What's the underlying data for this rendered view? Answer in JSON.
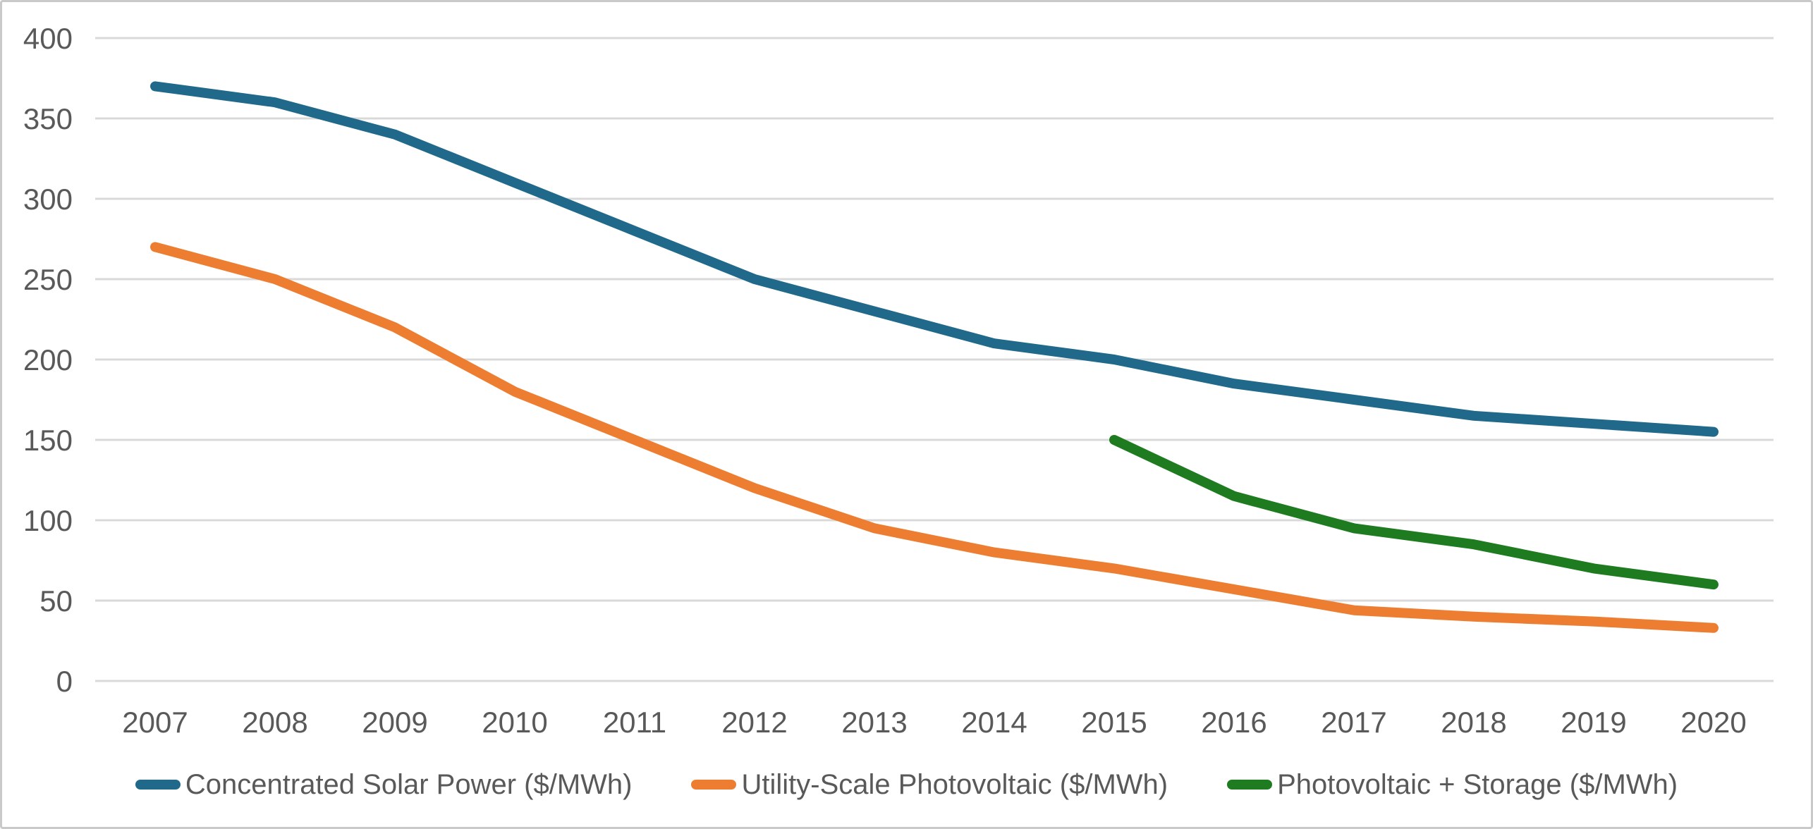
{
  "chart_data": {
    "type": "line",
    "title": "",
    "xlabel": "",
    "ylabel": "",
    "categories": [
      "2007",
      "2008",
      "2009",
      "2010",
      "2011",
      "2012",
      "2013",
      "2014",
      "2015",
      "2016",
      "2017",
      "2018",
      "2019",
      "2020"
    ],
    "series": [
      {
        "name": "Concentrated Solar Power ($/MWh)",
        "color": "#20698A",
        "values": [
          370,
          360,
          340,
          310,
          280,
          250,
          230,
          210,
          200,
          185,
          175,
          165,
          160,
          155
        ]
      },
      {
        "name": "Utility-Scale Photovoltaic ($/MWh)",
        "color": "#ED7D31",
        "values": [
          270,
          250,
          220,
          180,
          150,
          120,
          95,
          80,
          70,
          57,
          44,
          40,
          37,
          33
        ]
      },
      {
        "name": "Photovoltaic + Storage ($/MWh)",
        "color": "#1E7B1F",
        "values": [
          null,
          null,
          null,
          null,
          null,
          null,
          null,
          null,
          150,
          115,
          95,
          85,
          70,
          60
        ]
      }
    ],
    "ylim": [
      0,
      400
    ],
    "ytick_step": 50,
    "ytick_labels": [
      "0",
      "50",
      "100",
      "150",
      "200",
      "250",
      "300",
      "350",
      "400"
    ],
    "grid": "horizontal",
    "legend_position": "bottom"
  },
  "colors": {
    "background": "#FFFFFF",
    "gridline": "#D9D9D9",
    "axis_text": "#595959",
    "legend_text": "#595959",
    "frame_border": "#C9C9C9"
  }
}
